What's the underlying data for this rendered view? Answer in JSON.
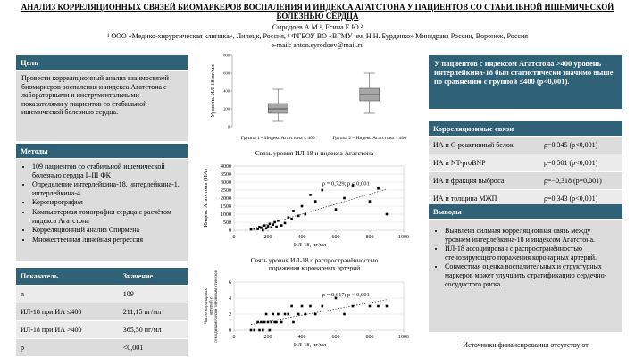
{
  "header": {
    "title": "АНАЛИЗ КОРРЕЛЯЦИОННЫХ СВЯЗЕЙ БИОМАРКЕРОВ ВОСПАЛЕНИЯ И ИНДЕКСА АГАТСТОНА У ПАЦИЕНТОВ СО СТАБИЛЬНОЙ ИШЕМИЧЕСКОЙ БОЛЕЗНЬЮ СЕРДЦА",
    "authors": "Сыродоев А.М.¹, Есина Е.Ю.²",
    "affiliations": "¹ ООО «Медико-хирургическая клиника», Липецк, Россия, ² ФГБОУ ВО «ВГМУ им. Н.Н. Бурденко» Минздрава России, Воронеж, Россия",
    "email": "e-mail: anton.syrodoev@mail.ru"
  },
  "aim": {
    "title": "Цель",
    "text": "Провести корреляционный анализ взаимосвязей биомаркеров воспаления и индекса Агатстона с лабораторными и инструментальными показателями у пациентов со стабильной ишемической болезнью сердца."
  },
  "methods": {
    "title": "Методы",
    "items": [
      "109 пациентов со стабильной ишемической болезнью сердца I–III ФК",
      "Определение интерлейкина-18, интерлейкина-1, интерлейкина-4",
      "Коронарография",
      "Компьютерная томография сердца с расчётом индекса Агатстона",
      "Корреляционный анализ Спирмена",
      "Множественная линейная регрессия"
    ]
  },
  "table": {
    "headers": [
      "Показатель",
      "Значение"
    ],
    "rows": [
      [
        "n",
        "109"
      ],
      [
        "ИЛ-18 при ИА ≤400",
        "211,15 пг/мл"
      ],
      [
        "ИЛ-18 при ИА >400",
        "365,50 пг/мл"
      ],
      [
        "p",
        "<0,001"
      ]
    ]
  },
  "chart_data": [
    {
      "type": "box",
      "ylabel": "Уровень ИЛ-18 пг/мл",
      "categories": [
        "Группа 1 – Индекс Агатстона ≤ 400",
        "Группа 2 – Индекс Агатстона > 400"
      ],
      "boxes": [
        {
          "min": 60,
          "q1": 150,
          "median": 200,
          "q3": 260,
          "max": 420
        },
        {
          "min": 150,
          "q1": 290,
          "median": 360,
          "q3": 430,
          "max": 600
        }
      ],
      "ylim": [
        0,
        800
      ],
      "yticks": [
        0,
        200,
        400,
        600,
        800
      ],
      "color": "#a6a6a6"
    },
    {
      "type": "scatter",
      "title": "Связь уровня ИЛ-18 и индекса Агатстона",
      "xlabel": "ИЛ-18, пг/мл",
      "ylabel": "Индекс Агатстона (ИА)",
      "annotation": "ρ = 0,729; p < 0,001",
      "x": [
        100,
        120,
        140,
        150,
        160,
        170,
        180,
        190,
        200,
        210,
        220,
        230,
        240,
        250,
        260,
        280,
        300,
        320,
        340,
        350,
        380,
        400,
        420,
        450,
        480,
        520,
        600,
        650,
        700,
        800,
        850,
        900
      ],
      "y": [
        50,
        100,
        80,
        200,
        150,
        0,
        300,
        120,
        250,
        400,
        180,
        350,
        500,
        220,
        600,
        300,
        450,
        800,
        700,
        1200,
        900,
        1500,
        1000,
        2200,
        1800,
        2500,
        1300,
        2000,
        2800,
        1800,
        2600,
        1000
      ],
      "xlim": [
        0,
        1000
      ],
      "xticks": [
        0,
        200,
        400,
        600,
        800,
        1000
      ],
      "ylim": [
        0,
        4000
      ],
      "yticks": [
        0,
        500,
        1000,
        1500,
        2000,
        2500,
        3000,
        3500,
        4000
      ],
      "color": "#000000"
    },
    {
      "type": "scatter",
      "title": [
        "Связь уровня ИЛ-18 с распространённостью",
        "поражения коронарных артерий"
      ],
      "xlabel": "ИЛ-18, пг/мл",
      "ylabel": [
        "Число коронарных",
        "артерий с",
        "гемодинамически значимым стенозом"
      ],
      "annotation": "ρ = 0,617; p < 0,001",
      "x": [
        100,
        120,
        140,
        150,
        160,
        170,
        180,
        190,
        200,
        210,
        220,
        230,
        240,
        250,
        260,
        280,
        300,
        320,
        340,
        350,
        380,
        400,
        420,
        450,
        480,
        520,
        600,
        650,
        700,
        800,
        850,
        900
      ],
      "y": [
        0,
        0,
        1,
        0,
        1,
        0,
        1,
        2,
        1,
        0,
        1,
        2,
        1,
        1,
        2,
        1,
        2,
        2,
        3,
        1,
        2,
        3,
        2,
        3,
        2,
        3,
        4,
        2,
        3,
        3,
        3,
        3
      ],
      "xlim": [
        0,
        1000
      ],
      "xticks": [
        0,
        200,
        400,
        600,
        800,
        1000
      ],
      "ylim": [
        0,
        6
      ],
      "yticks": [
        0,
        2,
        4,
        6
      ],
      "color": "#000000"
    }
  ],
  "highlight": "У пациентов с индексом Агатстона >400 уровень интерлейкина-18 был статистически значимо выше по сравнению с группой ≤400 (p<0,001).",
  "correlations": {
    "title": "Корреляционные связи",
    "rows": [
      [
        "ИА и С-реактивный белок",
        "ρ=0,345 (p<0,001)"
      ],
      [
        "ИА и NT-proBNP",
        "ρ=0,501 (p<0,001)"
      ],
      [
        "ИА и фракция выброса",
        "ρ=−0,318 (p=0,001)"
      ],
      [
        "ИА и толщина МЖП",
        "ρ=0,343 (p<0,001)"
      ]
    ]
  },
  "conclusions": {
    "title": "Выводы",
    "items": [
      "Выявлена сильная корреляционная связь между уровнем интерлейкина-18 и индексом Агатстона.",
      "ИЛ-18 ассоциирован с распространённостью стенозирующего поражения коронарных артерий.",
      "Совместная оценка воспалительных и структурных маркеров может улучшить стратификацию сердечно-сосудистого риска."
    ]
  },
  "funding": "Источники финансирования отсутствуют"
}
